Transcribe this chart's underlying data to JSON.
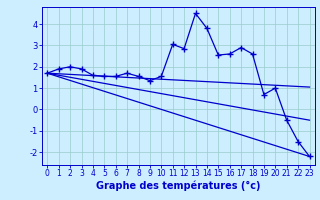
{
  "title": "",
  "xlabel": "Graphe des températures (°c)",
  "ylabel": "",
  "background_color": "#cceeff",
  "line_color": "#0000cc",
  "grid_color": "#99cccc",
  "xlim": [
    -0.5,
    23.5
  ],
  "ylim": [
    -2.6,
    4.8
  ],
  "xticks": [
    0,
    1,
    2,
    3,
    4,
    5,
    6,
    7,
    8,
    9,
    10,
    11,
    12,
    13,
    14,
    15,
    16,
    17,
    18,
    19,
    20,
    21,
    22,
    23
  ],
  "yticks": [
    -2,
    -1,
    0,
    1,
    2,
    3,
    4
  ],
  "series": {
    "main": [
      [
        0,
        1.7
      ],
      [
        1,
        1.9
      ],
      [
        2,
        2.0
      ],
      [
        3,
        1.9
      ],
      [
        4,
        1.6
      ],
      [
        5,
        1.55
      ],
      [
        6,
        1.55
      ],
      [
        7,
        1.7
      ],
      [
        8,
        1.55
      ],
      [
        9,
        1.35
      ],
      [
        10,
        1.55
      ],
      [
        11,
        3.05
      ],
      [
        12,
        2.85
      ],
      [
        13,
        4.5
      ],
      [
        14,
        3.8
      ],
      [
        15,
        2.55
      ],
      [
        16,
        2.6
      ],
      [
        17,
        2.9
      ],
      [
        18,
        2.6
      ],
      [
        19,
        0.7
      ],
      [
        20,
        1.0
      ],
      [
        21,
        -0.5
      ],
      [
        22,
        -1.5
      ],
      [
        23,
        -2.2
      ]
    ],
    "line1": [
      [
        0,
        1.7
      ],
      [
        23,
        1.05
      ]
    ],
    "line2": [
      [
        0,
        1.7
      ],
      [
        23,
        -0.5
      ]
    ],
    "line3": [
      [
        0,
        1.7
      ],
      [
        23,
        -2.2
      ]
    ]
  },
  "marker": "+",
  "markersize": 4,
  "linewidth": 0.9,
  "tick_fontsize": 5.5,
  "xlabel_fontsize": 7.0
}
